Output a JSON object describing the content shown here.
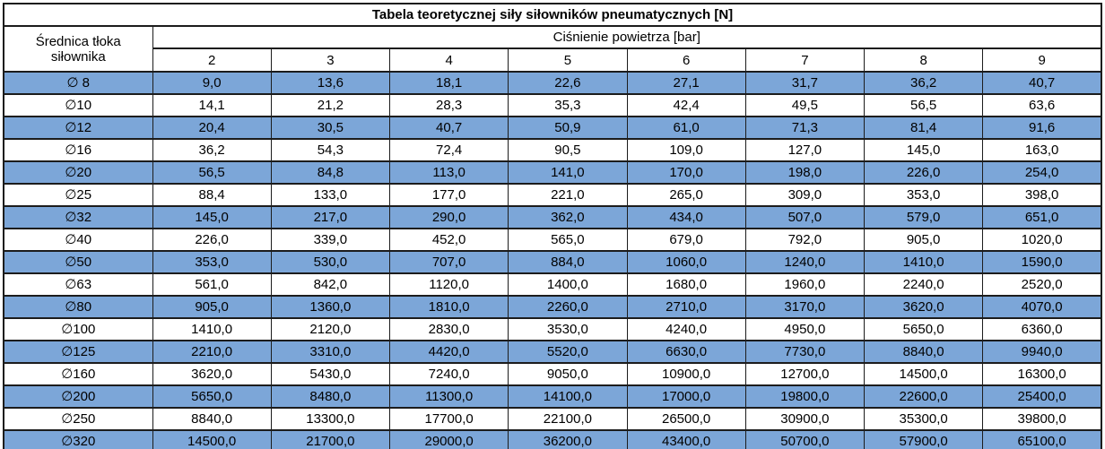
{
  "table": {
    "title": "Tabela teoretycznej siły siłowników pneumatycznych [N]",
    "diameter_header_lines": [
      "Średnica tłoka",
      "siłownika"
    ],
    "pressure_header": "Ciśnienie powietrza [bar]",
    "pressure_columns": [
      "2",
      "3",
      "4",
      "5",
      "6",
      "7",
      "8",
      "9"
    ],
    "rows": [
      {
        "diameter": "∅ 8",
        "highlight": true,
        "values": [
          "9,0",
          "13,6",
          "18,1",
          "22,6",
          "27,1",
          "31,7",
          "36,2",
          "40,7"
        ]
      },
      {
        "diameter": "∅10",
        "highlight": false,
        "values": [
          "14,1",
          "21,2",
          "28,3",
          "35,3",
          "42,4",
          "49,5",
          "56,5",
          "63,6"
        ]
      },
      {
        "diameter": "∅12",
        "highlight": true,
        "values": [
          "20,4",
          "30,5",
          "40,7",
          "50,9",
          "61,0",
          "71,3",
          "81,4",
          "91,6"
        ]
      },
      {
        "diameter": "∅16",
        "highlight": false,
        "values": [
          "36,2",
          "54,3",
          "72,4",
          "90,5",
          "109,0",
          "127,0",
          "145,0",
          "163,0"
        ]
      },
      {
        "diameter": "∅20",
        "highlight": true,
        "values": [
          "56,5",
          "84,8",
          "113,0",
          "141,0",
          "170,0",
          "198,0",
          "226,0",
          "254,0"
        ]
      },
      {
        "diameter": "∅25",
        "highlight": false,
        "values": [
          "88,4",
          "133,0",
          "177,0",
          "221,0",
          "265,0",
          "309,0",
          "353,0",
          "398,0"
        ]
      },
      {
        "diameter": "∅32",
        "highlight": true,
        "values": [
          "145,0",
          "217,0",
          "290,0",
          "362,0",
          "434,0",
          "507,0",
          "579,0",
          "651,0"
        ]
      },
      {
        "diameter": "∅40",
        "highlight": false,
        "values": [
          "226,0",
          "339,0",
          "452,0",
          "565,0",
          "679,0",
          "792,0",
          "905,0",
          "1020,0"
        ]
      },
      {
        "diameter": "∅50",
        "highlight": true,
        "values": [
          "353,0",
          "530,0",
          "707,0",
          "884,0",
          "1060,0",
          "1240,0",
          "1410,0",
          "1590,0"
        ]
      },
      {
        "diameter": "∅63",
        "highlight": false,
        "values": [
          "561,0",
          "842,0",
          "1120,0",
          "1400,0",
          "1680,0",
          "1960,0",
          "2240,0",
          "2520,0"
        ]
      },
      {
        "diameter": "∅80",
        "highlight": true,
        "values": [
          "905,0",
          "1360,0",
          "1810,0",
          "2260,0",
          "2710,0",
          "3170,0",
          "3620,0",
          "4070,0"
        ]
      },
      {
        "diameter": "∅100",
        "highlight": false,
        "values": [
          "1410,0",
          "2120,0",
          "2830,0",
          "3530,0",
          "4240,0",
          "4950,0",
          "5650,0",
          "6360,0"
        ]
      },
      {
        "diameter": "∅125",
        "highlight": true,
        "values": [
          "2210,0",
          "3310,0",
          "4420,0",
          "5520,0",
          "6630,0",
          "7730,0",
          "8840,0",
          "9940,0"
        ]
      },
      {
        "diameter": "∅160",
        "highlight": false,
        "values": [
          "3620,0",
          "5430,0",
          "7240,0",
          "9050,0",
          "10900,0",
          "12700,0",
          "14500,0",
          "16300,0"
        ]
      },
      {
        "diameter": "∅200",
        "highlight": true,
        "values": [
          "5650,0",
          "8480,0",
          "11300,0",
          "14100,0",
          "17000,0",
          "19800,0",
          "22600,0",
          "25400,0"
        ]
      },
      {
        "diameter": "∅250",
        "highlight": false,
        "values": [
          "8840,0",
          "13300,0",
          "17700,0",
          "22100,0",
          "26500,0",
          "30900,0",
          "35300,0",
          "39800,0"
        ]
      },
      {
        "diameter": "∅320",
        "highlight": true,
        "values": [
          "14500,0",
          "21700,0",
          "29000,0",
          "36200,0",
          "43400,0",
          "50700,0",
          "57900,0",
          "65100,0"
        ]
      }
    ]
  },
  "colors": {
    "row_highlight": "#7CA6D8",
    "border": "#1c1c1c",
    "background": "#ffffff",
    "text": "#000000"
  }
}
